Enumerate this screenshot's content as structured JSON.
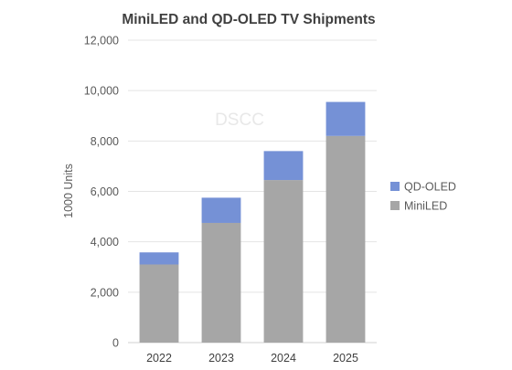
{
  "chart_data": {
    "type": "bar",
    "stacked": true,
    "title": "MiniLED and QD-OLED TV Shipments",
    "ylabel": "1000 Units",
    "xlabel": "",
    "watermark": "DSCC",
    "categories": [
      "2022",
      "2023",
      "2024",
      "2025"
    ],
    "ylim": [
      0,
      12000
    ],
    "ytick_step": 2000,
    "yticks": [
      "0",
      "2,000",
      "4,000",
      "6,000",
      "8,000",
      "10,000",
      "12,000"
    ],
    "grid": true,
    "legend_position": "right",
    "series": [
      {
        "name": "MiniLED",
        "values": [
          3100,
          4750,
          6450,
          8200
        ],
        "color": "#a6a6a6"
      },
      {
        "name": "QD-OLED",
        "values": [
          480,
          1000,
          1150,
          1350
        ],
        "color": "#7591d6"
      }
    ],
    "legend_order": [
      "QD-OLED",
      "MiniLED"
    ]
  }
}
